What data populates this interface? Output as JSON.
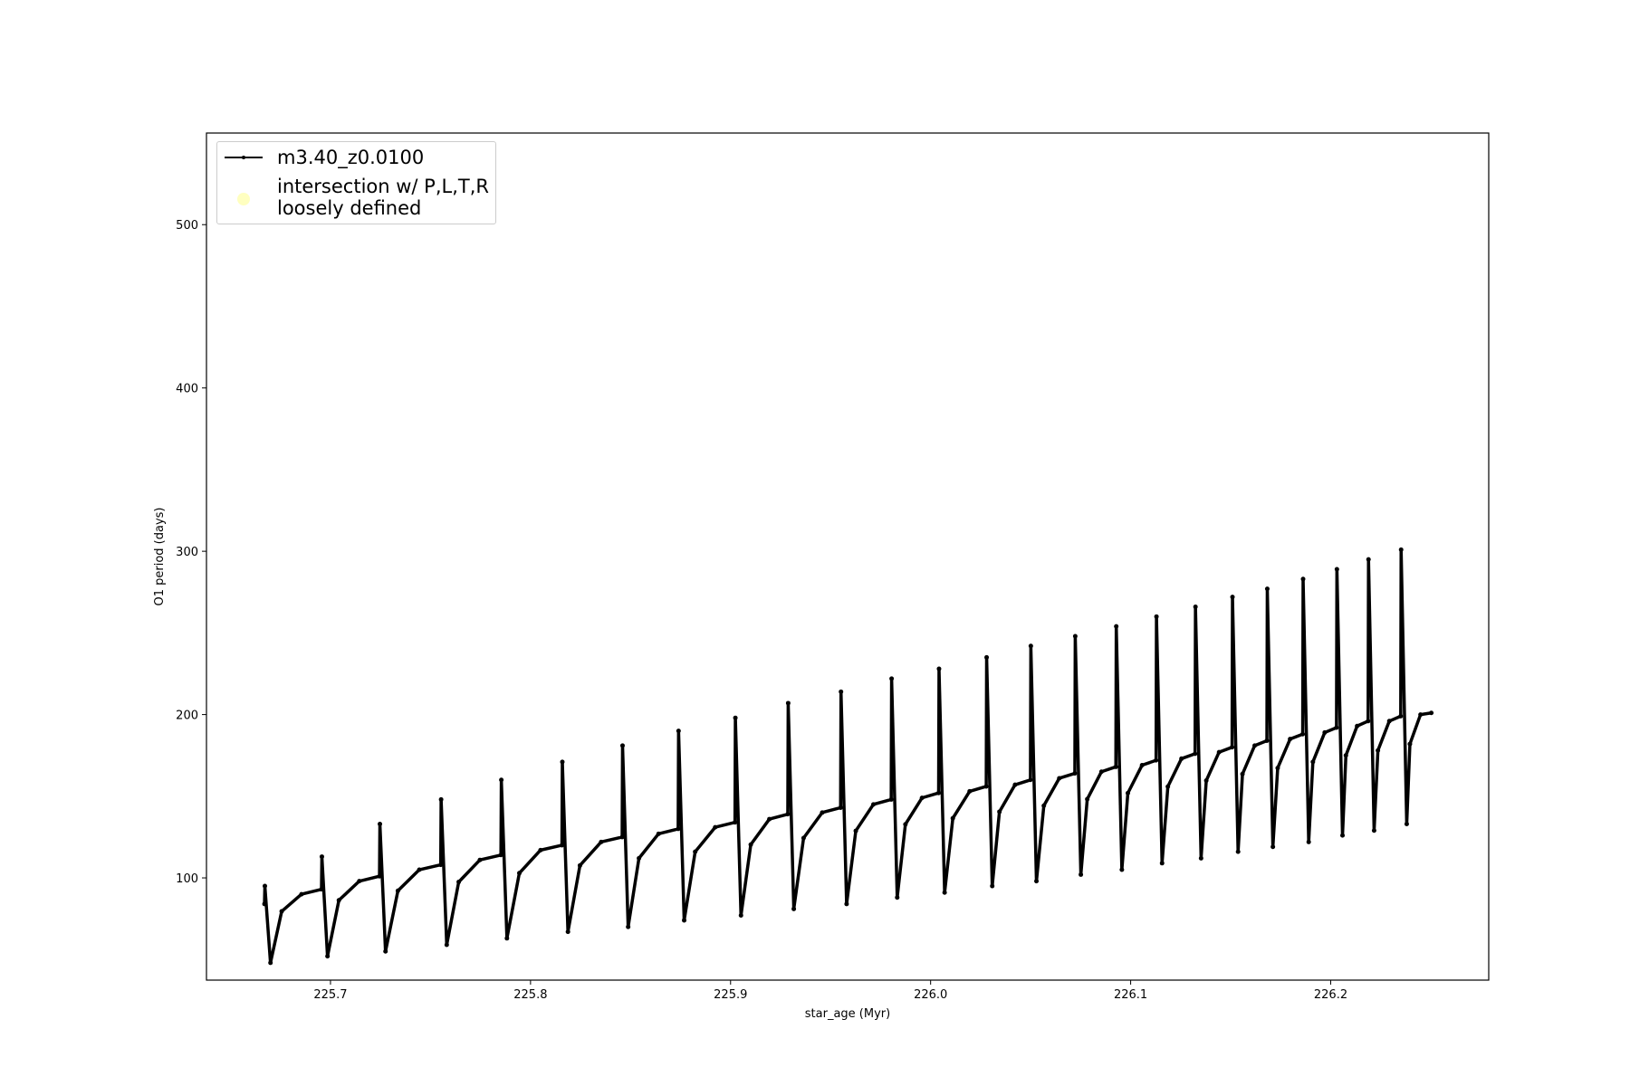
{
  "chart_data": {
    "type": "line",
    "xlabel": "star_age (Myr)",
    "ylabel": "O1 period (days)",
    "xlim": [
      225.638,
      226.279
    ],
    "ylim": [
      37.4,
      556.1
    ],
    "xticks": [
      225.7,
      225.8,
      225.9,
      {
        "value": 226,
        "label": "226.0"
      },
      226.1,
      226.2
    ],
    "yticks": [
      100,
      200,
      300,
      400,
      500
    ],
    "series": [
      {
        "name": "m3.40_z0.0100",
        "color": "#000000",
        "x": [
          225.667,
          225.6672,
          225.67,
          225.6756,
          225.6855,
          225.6955,
          225.6957,
          225.6985,
          225.7042,
          225.7144,
          225.7245,
          225.7247,
          225.7275,
          225.7337,
          225.7444,
          225.7551,
          225.7553,
          225.7581,
          225.7641,
          225.7747,
          225.7852,
          225.7854,
          225.7882,
          225.7944,
          225.805,
          225.8157,
          225.8159,
          225.8187,
          225.8247,
          225.8353,
          225.8458,
          225.846,
          225.8488,
          225.8542,
          225.864,
          225.8738,
          225.874,
          225.8768,
          225.8823,
          225.8923,
          225.9022,
          225.9024,
          225.9052,
          225.9101,
          225.9194,
          225.9286,
          225.9288,
          225.9316,
          225.9365,
          225.9458,
          225.955,
          225.9552,
          225.958,
          225.9626,
          225.9714,
          225.9803,
          225.9805,
          225.9833,
          225.9874,
          225.9957,
          226.004,
          226.0042,
          226.007,
          226.0111,
          226.0195,
          226.0278,
          226.028,
          226.0308,
          226.0344,
          226.0422,
          226.0499,
          226.0501,
          226.0529,
          226.0566,
          226.0643,
          226.0721,
          226.0723,
          226.0751,
          226.0783,
          226.0854,
          226.0926,
          226.0928,
          226.0956,
          226.0986,
          226.1057,
          226.1127,
          226.1129,
          226.1157,
          226.1186,
          226.1254,
          226.1322,
          226.1324,
          226.1352,
          226.1378,
          226.1442,
          226.1507,
          226.1509,
          226.1537,
          226.1559,
          226.162,
          226.1681,
          226.1683,
          226.1711,
          226.1735,
          226.1797,
          226.186,
          226.1862,
          226.189,
          226.1911,
          226.197,
          226.2029,
          226.2031,
          226.2059,
          226.2076,
          226.2132,
          226.2187,
          226.2189,
          226.2217,
          226.2236,
          226.2293,
          226.235,
          226.2352,
          226.238,
          226.2396,
          226.2449,
          226.2503
        ],
        "values": [
          84,
          95,
          48,
          79.5,
          90,
          93,
          113,
          52,
          86.3,
          98,
          101,
          133,
          55,
          92.1,
          105,
          108,
          148,
          59,
          97.5,
          111,
          114,
          160,
          63,
          102.9,
          117,
          120,
          171,
          67,
          107.6,
          122,
          125,
          181,
          70,
          112,
          127,
          130,
          190,
          74,
          116,
          131,
          134,
          198,
          77,
          120.4,
          136,
          139,
          207,
          81,
          124.4,
          140,
          143,
          214,
          84,
          128.8,
          145,
          148,
          222,
          88,
          132.8,
          149,
          152,
          228,
          91,
          136.5,
          153,
          156,
          235,
          95,
          140.5,
          157,
          160,
          242,
          98,
          144.2,
          161,
          164,
          248,
          102,
          148.2,
          165,
          168,
          254,
          105,
          151.9,
          169,
          172,
          260,
          109,
          155.9,
          173,
          176,
          266,
          112,
          159.6,
          177,
          180,
          272,
          116,
          163.6,
          181,
          184,
          277,
          119,
          167.3,
          185,
          188,
          283,
          122,
          171,
          189,
          192,
          289,
          126,
          175,
          193,
          196,
          295,
          129,
          178,
          196,
          199,
          301,
          133,
          182,
          200,
          201
        ]
      },
      {
        "name": "intersection w/ P,L,T,R\nloosely defined",
        "color": "#ffffc0"
      }
    ]
  }
}
